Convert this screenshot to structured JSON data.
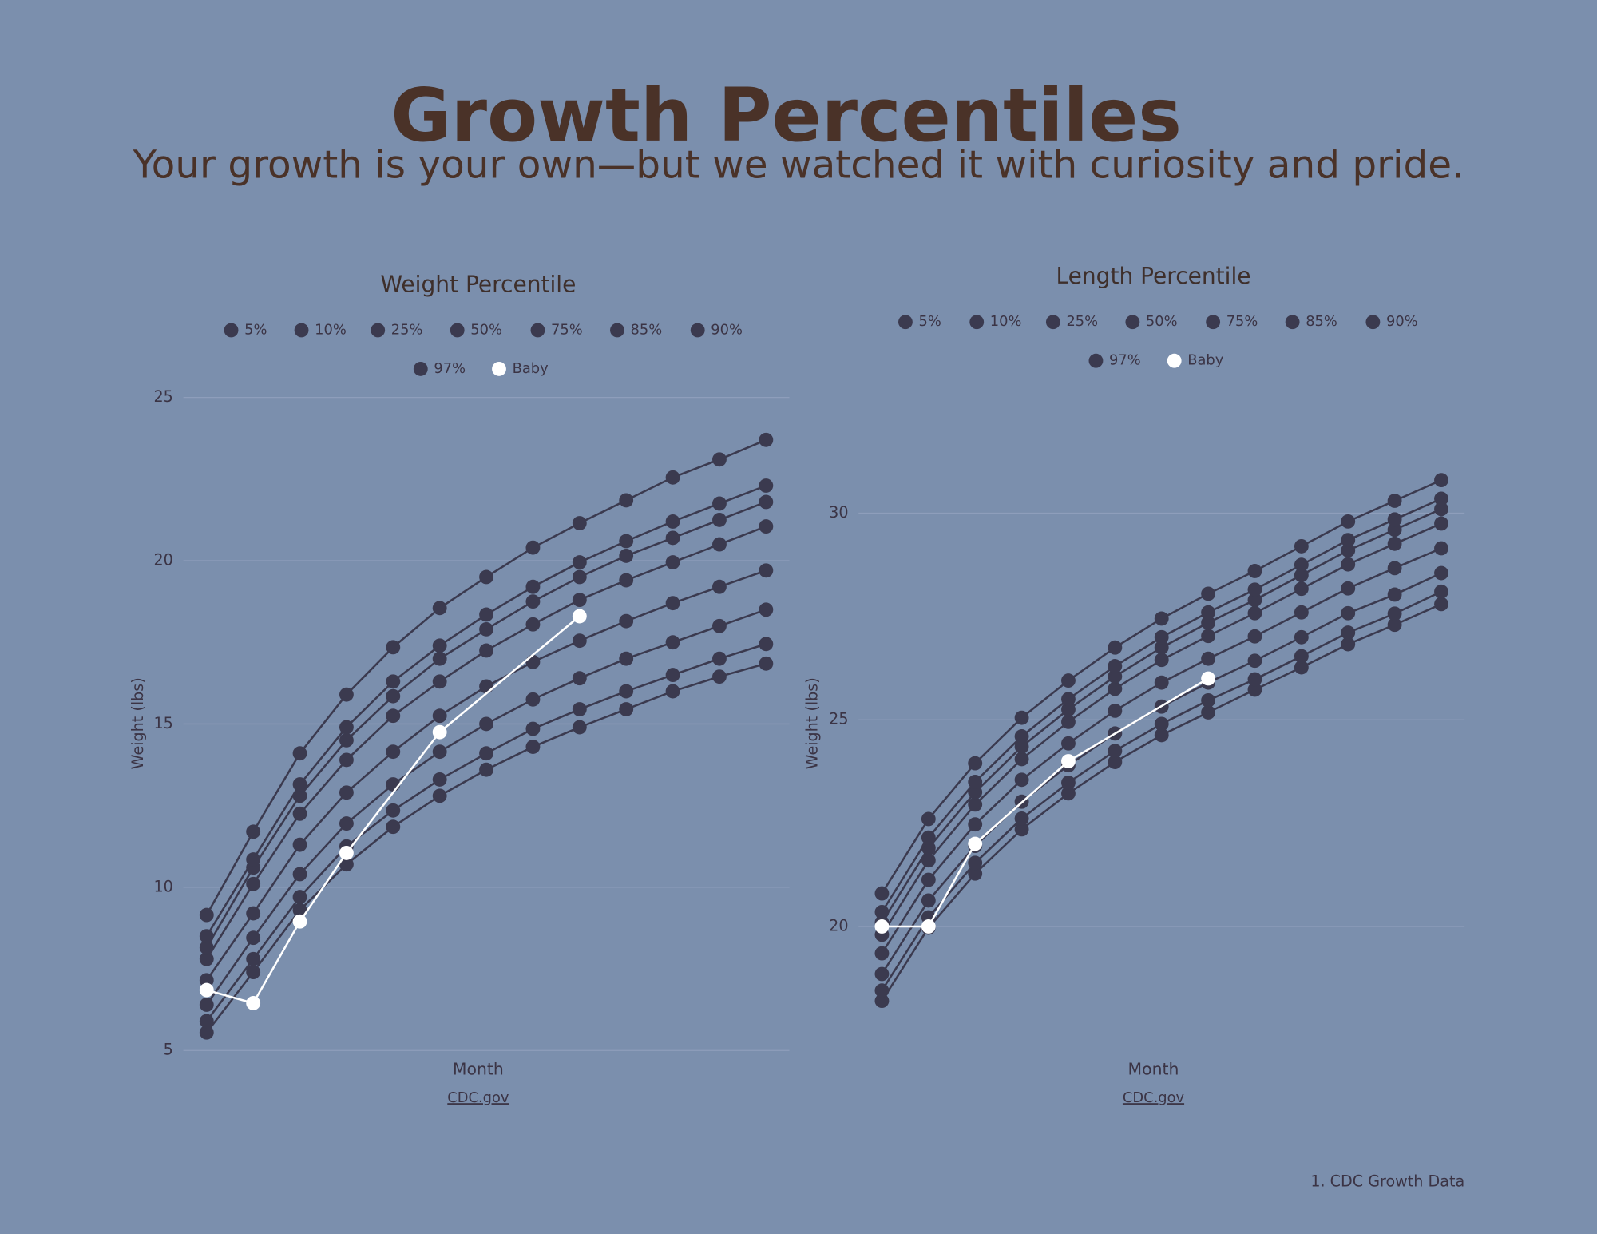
{
  "header": {
    "title": "Growth Percentiles",
    "subtitle": "Your growth is your own—but we watched it with curiosity and pride."
  },
  "chart_data": [
    {
      "type": "line",
      "title": "Weight Percentile",
      "x_label": "Month",
      "y_label": "Weight (lbs)",
      "source": "CDC.gov",
      "x": [
        0,
        1,
        2,
        3,
        4,
        5,
        6,
        7,
        8,
        9,
        10,
        11,
        12
      ],
      "xlim": [
        -0.5,
        12.5
      ],
      "ylim": [
        5,
        25
      ],
      "yticks": [
        5,
        10,
        15,
        20,
        25
      ],
      "grid": true,
      "series": [
        {
          "name": "5%",
          "color": "#3b3a4f",
          "values": [
            5.55,
            7.4,
            9.3,
            10.7,
            11.85,
            12.8,
            13.6,
            14.3,
            14.9,
            15.45,
            16.0,
            16.45,
            16.85
          ]
        },
        {
          "name": "10%",
          "color": "#3b3a4f",
          "values": [
            5.9,
            7.8,
            9.7,
            11.25,
            12.35,
            13.3,
            14.1,
            14.85,
            15.45,
            16.0,
            16.5,
            17.0,
            17.45
          ]
        },
        {
          "name": "25%",
          "color": "#3b3a4f",
          "values": [
            6.4,
            8.45,
            10.4,
            11.95,
            13.15,
            14.15,
            15.0,
            15.75,
            16.4,
            17.0,
            17.5,
            18.0,
            18.5
          ]
        },
        {
          "name": "50%",
          "color": "#3b3a4f",
          "values": [
            7.15,
            9.2,
            11.3,
            12.9,
            14.15,
            15.25,
            16.15,
            16.9,
            17.55,
            18.15,
            18.7,
            19.2,
            19.7
          ]
        },
        {
          "name": "75%",
          "color": "#3b3a4f",
          "values": [
            7.8,
            10.1,
            12.25,
            13.9,
            15.25,
            16.3,
            17.25,
            18.05,
            18.8,
            19.4,
            19.95,
            20.5,
            21.05
          ]
        },
        {
          "name": "85%",
          "color": "#3b3a4f",
          "values": [
            8.15,
            10.6,
            12.8,
            14.5,
            15.85,
            17.0,
            17.9,
            18.75,
            19.5,
            20.15,
            20.7,
            21.25,
            21.8
          ]
        },
        {
          "name": "90%",
          "color": "#3b3a4f",
          "values": [
            8.5,
            10.85,
            13.15,
            14.9,
            16.3,
            17.4,
            18.35,
            19.2,
            19.95,
            20.6,
            21.2,
            21.75,
            22.3
          ]
        },
        {
          "name": "97%",
          "color": "#3b3a4f",
          "values": [
            9.15,
            11.7,
            14.1,
            15.9,
            17.35,
            18.55,
            19.5,
            20.4,
            21.15,
            21.85,
            22.55,
            23.1,
            23.7
          ]
        },
        {
          "name": "Baby",
          "color": "#ffffff",
          "x": [
            0,
            1,
            2,
            3,
            5,
            8
          ],
          "values": [
            6.85,
            6.45,
            8.95,
            11.05,
            14.75,
            18.3
          ]
        }
      ]
    },
    {
      "type": "line",
      "title": "Length Percentile",
      "x_label": "Month",
      "y_label": "Weight (lbs)",
      "source": "CDC.gov",
      "x": [
        0,
        1,
        2,
        3,
        4,
        5,
        6,
        7,
        8,
        9,
        10,
        11,
        12
      ],
      "xlim": [
        -0.5,
        12.5
      ],
      "ylim": [
        17,
        32.8
      ],
      "yticks": [
        20,
        25,
        30
      ],
      "grid": true,
      "series": [
        {
          "name": "5%",
          "color": "#3b3a4f",
          "values": [
            18.2,
            19.97,
            21.28,
            22.35,
            23.22,
            23.98,
            24.63,
            25.18,
            25.73,
            26.27,
            26.83,
            27.3,
            27.8
          ]
        },
        {
          "name": "10%",
          "color": "#3b3a4f",
          "values": [
            18.45,
            20.22,
            21.54,
            22.61,
            23.48,
            24.25,
            24.9,
            25.47,
            25.98,
            26.54,
            27.11,
            27.57,
            28.1
          ]
        },
        {
          "name": "25%",
          "color": "#3b3a4f",
          "values": [
            18.85,
            20.63,
            21.95,
            23.02,
            23.9,
            24.67,
            25.32,
            25.9,
            26.43,
            27.0,
            27.58,
            28.03,
            28.55
          ]
        },
        {
          "name": "50%",
          "color": "#3b3a4f",
          "values": [
            19.35,
            21.13,
            22.47,
            23.55,
            24.43,
            25.22,
            25.9,
            26.48,
            27.02,
            27.6,
            28.18,
            28.67,
            29.15
          ]
        },
        {
          "name": "75%",
          "color": "#3b3a4f",
          "values": [
            19.8,
            21.6,
            22.95,
            24.05,
            24.95,
            25.75,
            26.45,
            27.03,
            27.58,
            28.17,
            28.76,
            29.26,
            29.75
          ]
        },
        {
          "name": "85%",
          "color": "#3b3a4f",
          "values": [
            20.1,
            21.9,
            23.25,
            24.35,
            25.25,
            26.05,
            26.75,
            27.35,
            27.9,
            28.5,
            29.1,
            29.6,
            30.1
          ]
        },
        {
          "name": "90%",
          "color": "#3b3a4f",
          "values": [
            20.35,
            22.15,
            23.5,
            24.6,
            25.5,
            26.3,
            27.0,
            27.6,
            28.15,
            28.75,
            29.35,
            29.85,
            30.35
          ]
        },
        {
          "name": "97%",
          "color": "#3b3a4f",
          "values": [
            20.8,
            22.6,
            23.95,
            25.05,
            25.95,
            26.75,
            27.45,
            28.05,
            28.6,
            29.2,
            29.8,
            30.3,
            30.8
          ]
        },
        {
          "name": "Baby",
          "color": "#ffffff",
          "x": [
            0,
            1,
            2,
            4,
            7
          ],
          "values": [
            20.0,
            20.0,
            22.0,
            24.0,
            26.0
          ]
        }
      ]
    }
  ],
  "footnote": "1. CDC Growth Data"
}
